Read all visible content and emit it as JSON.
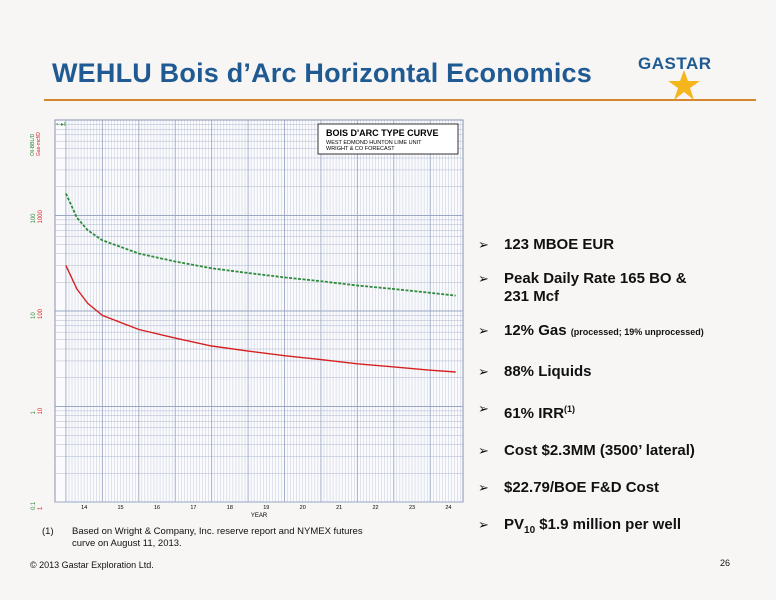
{
  "slide": {
    "title": "WEHLU Bois d’Arc Horizontal Economics",
    "logo_text": "GASTAR",
    "page_number": "26",
    "copyright": "© 2013 Gastar Exploration Ltd."
  },
  "bullets": [
    {
      "text": "123 MBOE EUR"
    },
    {
      "line1": "Peak Daily Rate 165 BO &",
      "line2": "231 Mcf"
    },
    {
      "text": "12% Gas",
      "small": "(processed; 19% unprocessed)"
    },
    {
      "text": "88% Liquids"
    },
    {
      "text": "61% IRR",
      "sup": "(1)"
    },
    {
      "text": "Cost $2.3MM (3500’ lateral)"
    },
    {
      "text": "$22.79/BOE F&D Cost"
    },
    {
      "pre": "PV",
      "sub": "10",
      "post": " $1.9 million per well"
    }
  ],
  "footnote": {
    "marker": "(1)",
    "text": "Based on Wright & Company, Inc. reserve report and NYMEX futures curve on August 11, 2013."
  },
  "chart_data": {
    "type": "line",
    "title": "BOIS D'ARC TYPE CURVE",
    "subtitle_lines": [
      "WEST EDMOND HUNTON LIME UNIT",
      "WRIGHT & CO FORECAST"
    ],
    "xlabel": "YEAR",
    "x_ticks": [
      "14",
      "15",
      "16",
      "17",
      "18",
      "19",
      "20",
      "21",
      "22",
      "23",
      "24"
    ],
    "y_scale": "log",
    "y_ticks_oil": [
      "0.1",
      "1",
      "10",
      "100"
    ],
    "y_ticks_gas": [
      "1",
      "10",
      "100",
      "1000"
    ],
    "y_axis_label_oil": "Oil-BBL/D",
    "y_axis_label_gas": "Gas-mcf/D",
    "grid": true,
    "colors": {
      "gas": "#2e8b3a",
      "oil": "#d62020",
      "grid": "#9aa8c4"
    },
    "series": [
      {
        "key": "gas",
        "x": [
          14.0,
          14.3,
          14.6,
          15.0,
          16.0,
          17.0,
          18.0,
          19.0,
          20.0,
          21.0,
          22.0,
          23.0,
          24.0,
          24.7
        ],
        "y": [
          170,
          95,
          70,
          55,
          40,
          33,
          28,
          25,
          22.5,
          20.5,
          18.5,
          17,
          15.5,
          14.5
        ]
      },
      {
        "key": "oil",
        "x": [
          14.0,
          14.3,
          14.6,
          15.0,
          16.0,
          17.0,
          18.0,
          19.0,
          20.0,
          21.0,
          22.0,
          23.0,
          24.0,
          24.7
        ],
        "y": [
          30,
          17,
          12,
          9,
          6.4,
          5.2,
          4.3,
          3.8,
          3.4,
          3.1,
          2.8,
          2.6,
          2.4,
          2.3
        ]
      }
    ]
  }
}
